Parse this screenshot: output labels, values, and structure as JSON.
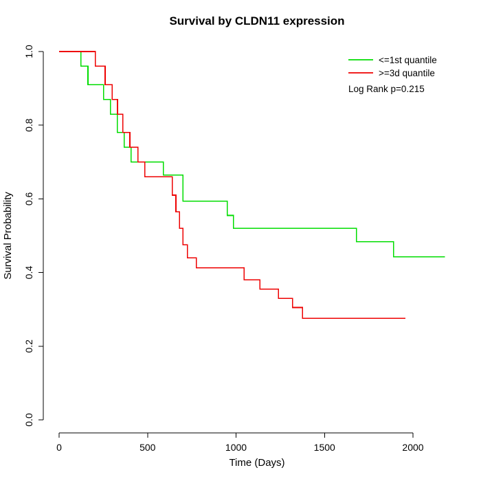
{
  "page": {
    "background": "#ffffff"
  },
  "chart_data": {
    "type": "line",
    "subtype": "kaplan-meier-step",
    "title": "Survival by CLDN11 expression",
    "xlabel": "Time (Days)",
    "ylabel": "Survival Probability",
    "xlim": [
      0,
      2200
    ],
    "ylim": [
      0.0,
      1.0
    ],
    "xticks": [
      0,
      500,
      1000,
      1500,
      2000
    ],
    "ytick_labels": [
      "0.0",
      "0.2",
      "0.4",
      "0.6",
      "0.8",
      "1.0"
    ],
    "yticks": [
      0.0,
      0.2,
      0.4,
      0.6,
      0.8,
      1.0
    ],
    "grid": false,
    "legend_position": "top-right",
    "annotation": "Log Rank p=0.215",
    "series": [
      {
        "name": "<=1st quantile",
        "color": "#00DD00",
        "end": 2180,
        "points": [
          [
            0,
            1.0
          ],
          [
            124,
            0.96
          ],
          [
            163,
            0.91
          ],
          [
            252,
            0.87
          ],
          [
            291,
            0.83
          ],
          [
            329,
            0.78
          ],
          [
            368,
            0.74
          ],
          [
            407,
            0.7
          ],
          [
            590,
            0.665
          ],
          [
            700,
            0.594
          ],
          [
            950,
            0.555
          ],
          [
            985,
            0.52
          ],
          [
            1680,
            0.484
          ],
          [
            1890,
            0.443
          ]
        ]
      },
      {
        "name": ">=3d quantile",
        "color": "#EE0000",
        "end": 1957,
        "points": [
          [
            0,
            1.0
          ],
          [
            205,
            0.96
          ],
          [
            260,
            0.91
          ],
          [
            300,
            0.87
          ],
          [
            330,
            0.83
          ],
          [
            360,
            0.78
          ],
          [
            400,
            0.74
          ],
          [
            445,
            0.7
          ],
          [
            485,
            0.66
          ],
          [
            640,
            0.61
          ],
          [
            660,
            0.565
          ],
          [
            680,
            0.52
          ],
          [
            700,
            0.475
          ],
          [
            725,
            0.44
          ],
          [
            775,
            0.413
          ],
          [
            1046,
            0.38
          ],
          [
            1135,
            0.355
          ],
          [
            1240,
            0.33
          ],
          [
            1320,
            0.305
          ],
          [
            1376,
            0.276
          ]
        ]
      }
    ]
  }
}
